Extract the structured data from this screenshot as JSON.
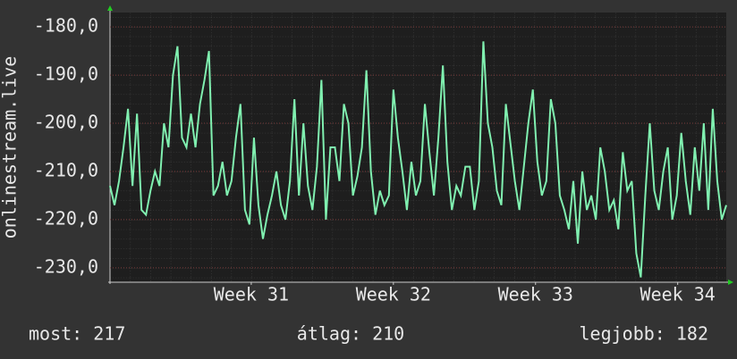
{
  "chart_data": {
    "type": "line",
    "y_label": "onlinestream.live",
    "xlim": [
      0,
      137
    ],
    "xticks": [
      {
        "value": 31.4,
        "label": "Week 31"
      },
      {
        "value": 63,
        "label": "Week 32"
      },
      {
        "value": 94.6,
        "label": "Week 33"
      },
      {
        "value": 126.2,
        "label": "Week 34"
      }
    ],
    "ylim": [
      -233,
      -177
    ],
    "yticks": [
      {
        "value": -180,
        "label": "-180,0"
      },
      {
        "value": -190,
        "label": "-190,0"
      },
      {
        "value": -200,
        "label": "-200,0"
      },
      {
        "value": -210,
        "label": "-210,0"
      },
      {
        "value": -220,
        "label": "-220,0"
      },
      {
        "value": -230,
        "label": "-230,0"
      }
    ],
    "grid": true,
    "series": [
      {
        "color": "#80f0b0",
        "values": [
          -213,
          -217,
          -212,
          -205,
          -197,
          -213,
          -198,
          -218,
          -219,
          -214,
          -210,
          -213,
          -200,
          -205,
          -190,
          -184,
          -203,
          -205,
          -198,
          -205,
          -196,
          -191,
          -185,
          -215,
          -213,
          -208,
          -215,
          -212,
          -203,
          -196,
          -218,
          -221,
          -203,
          -217,
          -224,
          -219,
          -215,
          -210,
          -217,
          -220,
          -212,
          -195,
          -215,
          -200,
          -213,
          -218,
          -209,
          -191,
          -220,
          -205,
          -205,
          -212,
          -196,
          -200,
          -215,
          -211,
          -205,
          -189,
          -210,
          -219,
          -214,
          -217,
          -215,
          -193,
          -203,
          -210,
          -218,
          -208,
          -215,
          -212,
          -196,
          -206,
          -215,
          -203,
          -188,
          -208,
          -218,
          -213,
          -215,
          -209,
          -209,
          -218,
          -212,
          -183,
          -200,
          -205,
          -214,
          -217,
          -196,
          -204,
          -212,
          -218,
          -209,
          -200,
          -193,
          -208,
          -215,
          -212,
          -195,
          -200,
          -215,
          -218,
          -222,
          -212,
          -225,
          -210,
          -218,
          -215,
          -220,
          -205,
          -210,
          -218,
          -216,
          -222,
          -206,
          -214,
          -212,
          -227,
          -232,
          -215,
          -200,
          -214,
          -218,
          -210,
          -205,
          -220,
          -215,
          -202,
          -212,
          -219,
          -205,
          -214,
          -200,
          -218,
          -197,
          -212,
          -220,
          -217
        ]
      }
    ],
    "footer": {
      "current": "most: 217",
      "average": "átlag: 210",
      "best": "legjobb: 182"
    }
  }
}
